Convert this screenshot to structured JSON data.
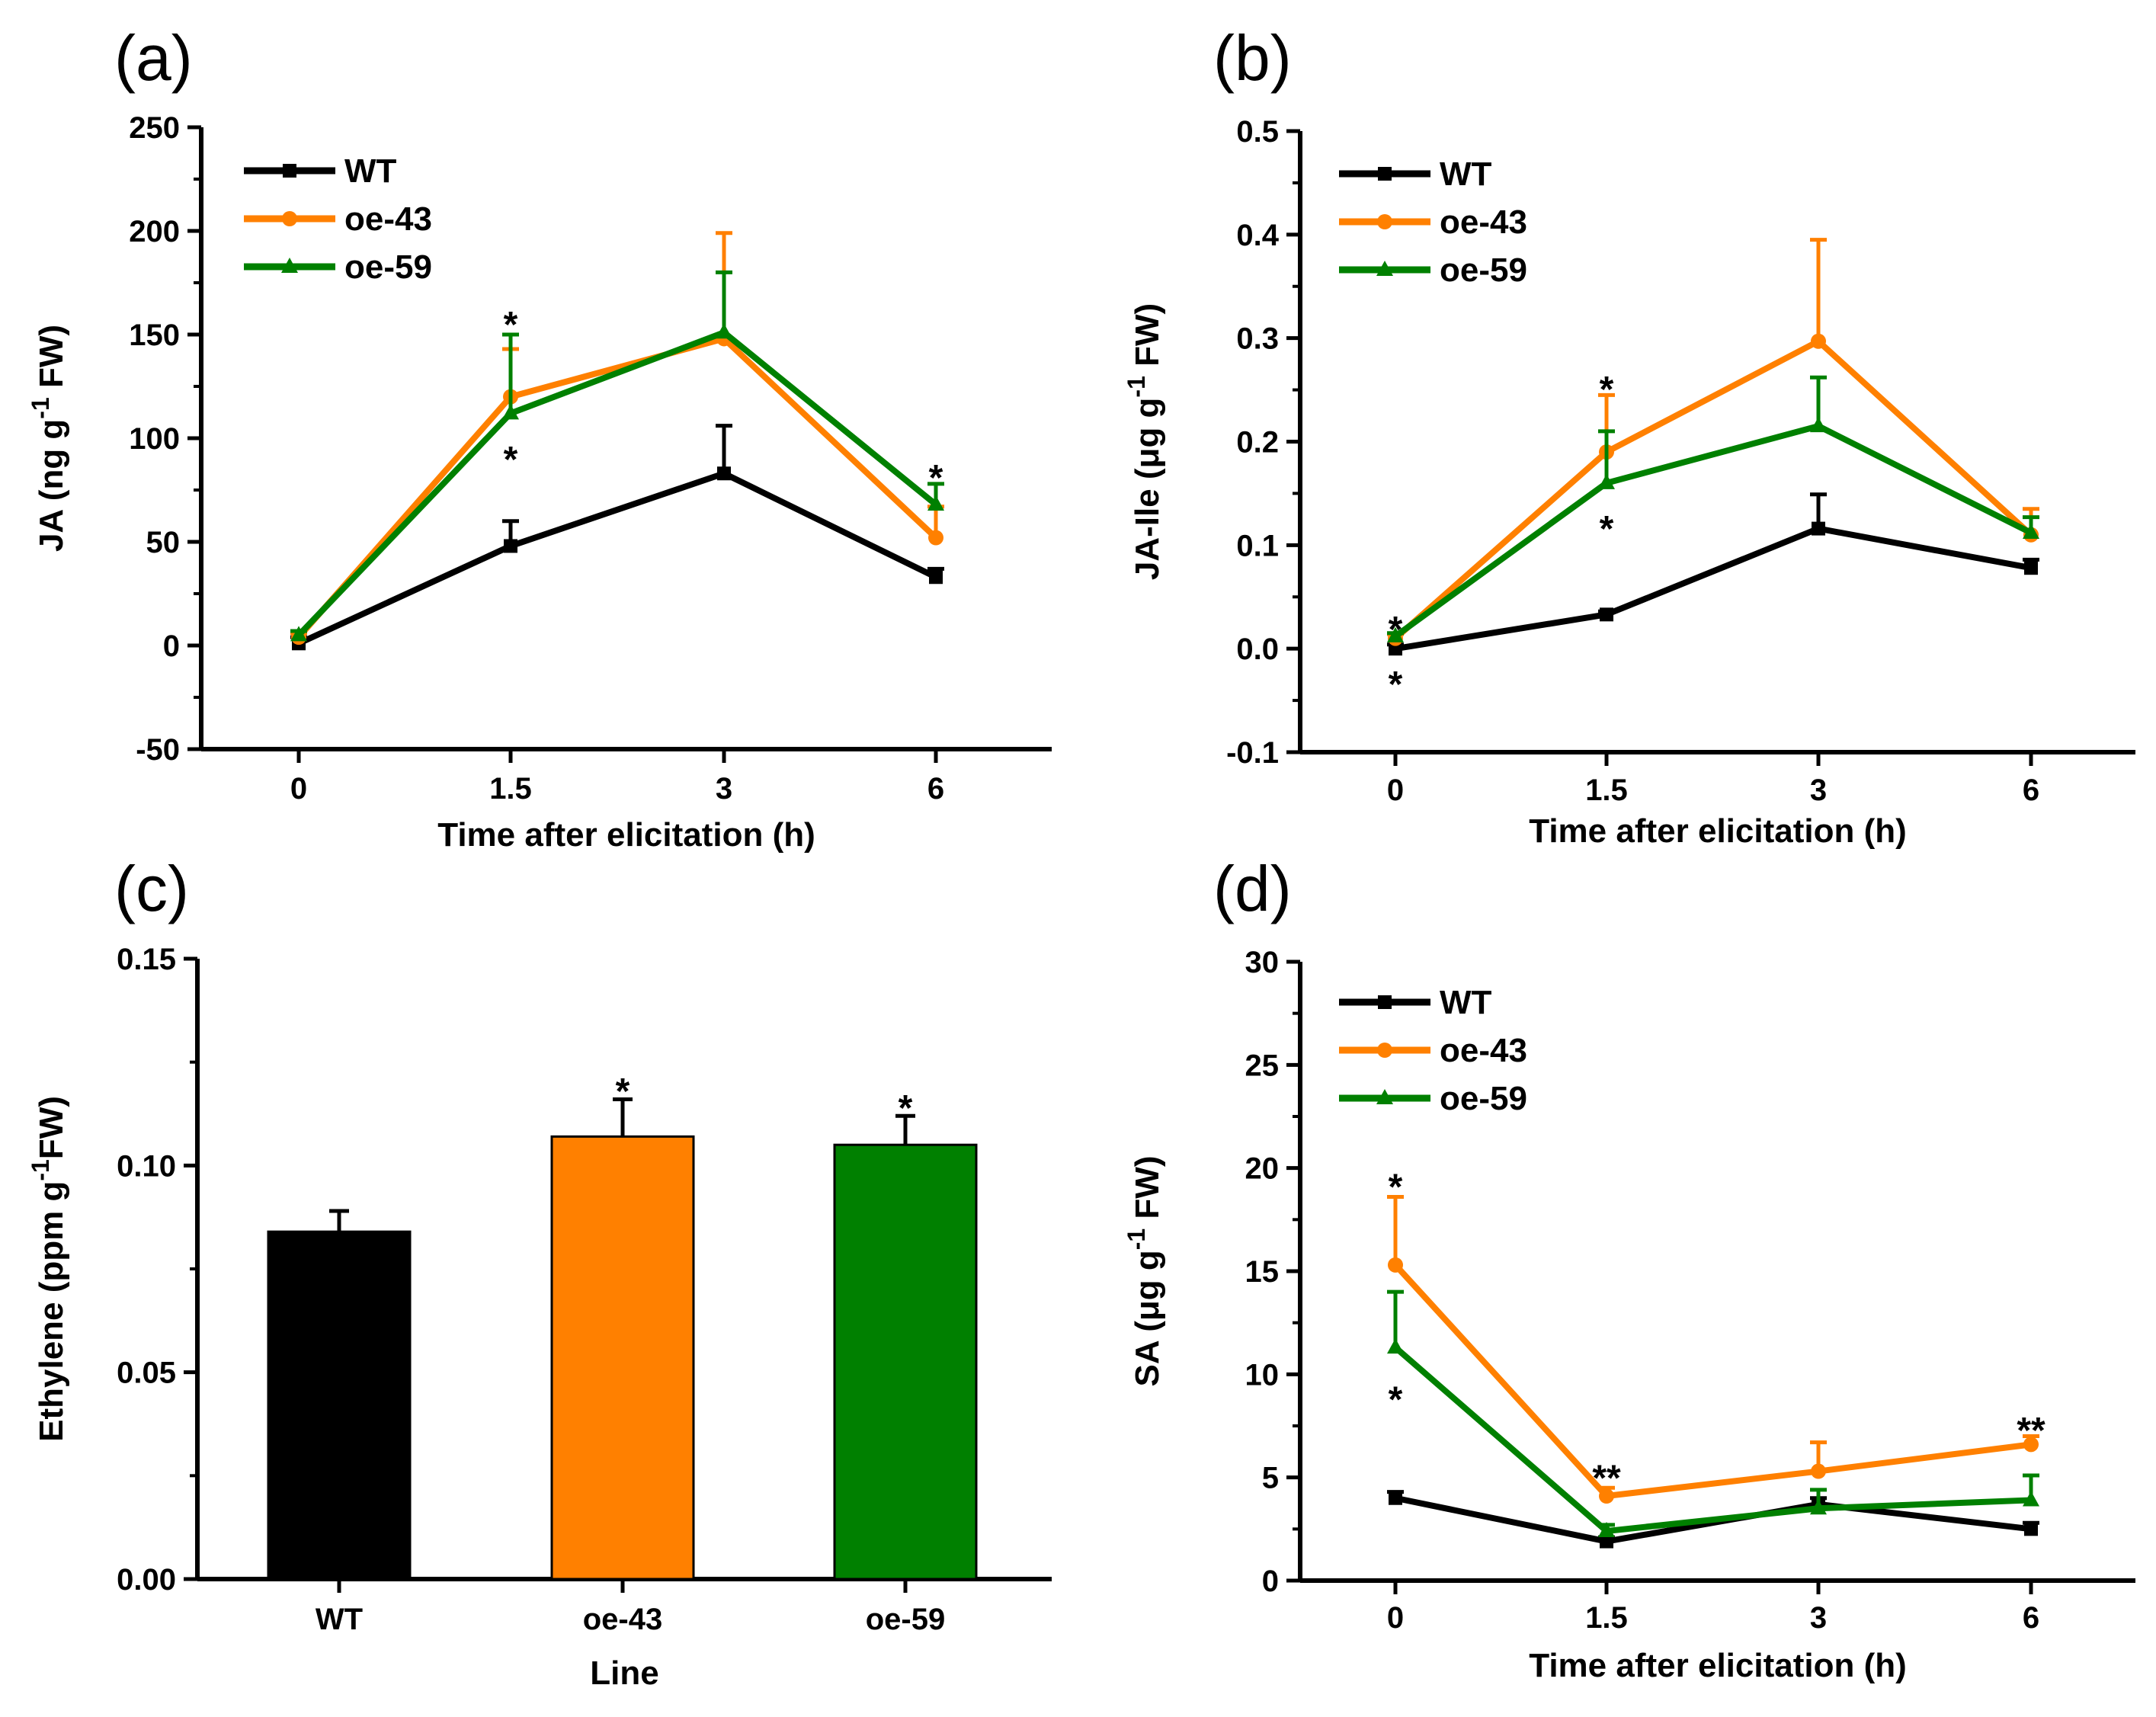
{
  "colors": {
    "WT": "#000000",
    "oe-43": "#ff8000",
    "oe-59": "#008000"
  },
  "legend": [
    {
      "label": "WT",
      "marker": "square",
      "color": "#000000"
    },
    {
      "label": "oe-43",
      "marker": "circle",
      "color": "#ff8000"
    },
    {
      "label": "oe-59",
      "marker": "triangle",
      "color": "#008000"
    }
  ],
  "chart_data": [
    {
      "panel": "(a)",
      "type": "line",
      "xlabel": "Time after elicitation  (h)",
      "ylabel_pre": "JA (ng  g",
      "ylabel_sup": "-1",
      "ylabel_post": " FW)",
      "categories": [
        "0",
        "1.5",
        "3",
        "6"
      ],
      "ylim": [
        -50,
        250
      ],
      "yticks": [
        -50,
        0,
        50,
        100,
        150,
        200,
        250
      ],
      "yticklabels": [
        "-50",
        "0",
        "50",
        "100",
        "150",
        "200",
        "250"
      ],
      "legend_position": "top-left",
      "series": [
        {
          "name": "WT",
          "values": [
            1,
            48,
            83,
            33
          ],
          "errors": [
            3,
            12,
            23,
            4
          ]
        },
        {
          "name": "oe-43",
          "values": [
            4,
            120,
            148,
            52
          ],
          "errors": [
            2,
            23,
            51,
            15
          ]
        },
        {
          "name": "oe-59",
          "values": [
            5,
            112,
            151,
            68
          ],
          "errors": [
            2,
            38,
            29,
            10
          ]
        }
      ],
      "annotations": [
        {
          "text": "*",
          "x": "1.5",
          "y": 157
        },
        {
          "text": "*",
          "x": "1.5",
          "y": 92
        },
        {
          "text": "*",
          "x": "6",
          "y": 83
        }
      ]
    },
    {
      "panel": "(b)",
      "type": "line",
      "xlabel": "Time after elicitation  (h)",
      "ylabel_pre": "JA-Ile (μg  g",
      "ylabel_sup": "-1",
      "ylabel_post": " FW)",
      "categories": [
        "0",
        "1.5",
        "3",
        "6"
      ],
      "ylim": [
        -0.1,
        0.5
      ],
      "yticks": [
        -0.1,
        0.0,
        0.1,
        0.2,
        0.3,
        0.4,
        0.5
      ],
      "yticklabels": [
        "-0.1",
        "0.0",
        "0.1",
        "0.2",
        "0.3",
        "0.4",
        "0.5"
      ],
      "legend_position": "top-left",
      "series": [
        {
          "name": "WT",
          "values": [
            0.0,
            0.033,
            0.116,
            0.078
          ],
          "errors": [
            0.004,
            0.003,
            0.033,
            0.008
          ]
        },
        {
          "name": "oe-43",
          "values": [
            0.01,
            0.19,
            0.297,
            0.11
          ],
          "errors": [
            0.004,
            0.055,
            0.098,
            0.025
          ]
        },
        {
          "name": "oe-59",
          "values": [
            0.012,
            0.16,
            0.215,
            0.112
          ],
          "errors": [
            0.003,
            0.05,
            0.047,
            0.015
          ]
        }
      ],
      "annotations": [
        {
          "text": "*",
          "x": "0",
          "y": 0.023
        },
        {
          "text": "*",
          "x": "0",
          "y": -0.03
        },
        {
          "text": "*",
          "x": "1.5",
          "y": 0.255
        },
        {
          "text": "*",
          "x": "1.5",
          "y": 0.12
        }
      ]
    },
    {
      "panel": "(c)",
      "type": "bar",
      "xlabel": "Line",
      "ylabel_pre": "Ethylene (ppm  g",
      "ylabel_sup": "-1",
      "ylabel_post": "FW)",
      "categories": [
        "WT",
        "oe-43",
        "oe-59"
      ],
      "values": [
        0.084,
        0.107,
        0.105
      ],
      "errors": [
        0.005,
        0.009,
        0.007
      ],
      "bar_colors": [
        "#000000",
        "#ff8000",
        "#008000"
      ],
      "ylim": [
        0,
        0.15
      ],
      "yticks": [
        0,
        0.05,
        0.1,
        0.15
      ],
      "yticklabels": [
        "0.00",
        "0.05",
        "0.10",
        "0.15"
      ],
      "annotations": [
        {
          "text": "*",
          "x": "oe-43",
          "y": 0.119
        },
        {
          "text": "*",
          "x": "oe-59",
          "y": 0.115
        }
      ]
    },
    {
      "panel": "(d)",
      "type": "line",
      "xlabel": "Time after elicitation  (h)",
      "ylabel_pre": "SA (μg  g",
      "ylabel_sup": "-1",
      "ylabel_post": " FW)",
      "categories": [
        "0",
        "1.5",
        "3",
        "6"
      ],
      "ylim": [
        0,
        30
      ],
      "yticks": [
        0,
        5,
        10,
        15,
        20,
        25,
        30
      ],
      "yticklabels": [
        "0",
        "5",
        "10",
        "15",
        "20",
        "25",
        "30"
      ],
      "legend_position": "top-left",
      "series": [
        {
          "name": "WT",
          "values": [
            4.0,
            1.9,
            3.7,
            2.5
          ],
          "errors": [
            0.3,
            0.2,
            0.3,
            0.3
          ]
        },
        {
          "name": "oe-43",
          "values": [
            15.3,
            4.1,
            5.3,
            6.6
          ],
          "errors": [
            3.3,
            0.4,
            1.4,
            0.4
          ]
        },
        {
          "name": "oe-59",
          "values": [
            11.3,
            2.4,
            3.5,
            3.9
          ],
          "errors": [
            2.7,
            0.3,
            0.9,
            1.2
          ]
        }
      ],
      "annotations": [
        {
          "text": "*",
          "x": "0",
          "y": 19.3
        },
        {
          "text": "*",
          "x": "0",
          "y": 9.0
        },
        {
          "text": "**",
          "x": "1.5",
          "y": 5.2
        },
        {
          "text": "**",
          "x": "6",
          "y": 7.5
        }
      ]
    }
  ]
}
